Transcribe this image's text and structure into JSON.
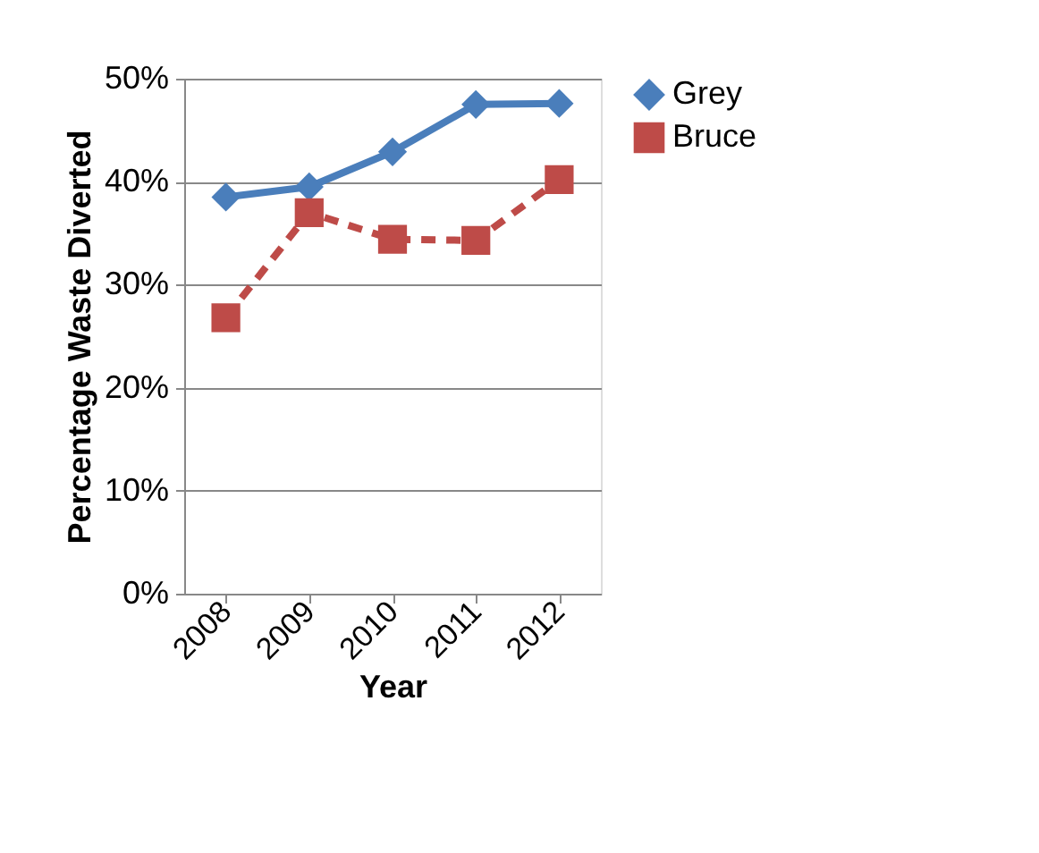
{
  "chart_data": {
    "type": "line",
    "xlabel": "Year",
    "ylabel": "Percentage Waste Diverted",
    "categories": [
      "2008",
      "2009",
      "2010",
      "2011",
      "2012"
    ],
    "series": [
      {
        "name": "Grey",
        "color": "#4a7ebb",
        "marker": "diamond",
        "line_style": "solid",
        "values": [
          38.5,
          39.5,
          42.9,
          47.5,
          47.6
        ]
      },
      {
        "name": "Bruce",
        "color": "#be4b48",
        "marker": "square",
        "line_style": "dashed",
        "values": [
          26.8,
          37.0,
          34.4,
          34.3,
          40.2
        ]
      }
    ],
    "ylim": [
      0,
      50
    ],
    "yticks": [
      {
        "value": 0,
        "label": "0%"
      },
      {
        "value": 10,
        "label": "10%"
      },
      {
        "value": 20,
        "label": "20%"
      },
      {
        "value": 30,
        "label": "30%"
      },
      {
        "value": 40,
        "label": "40%"
      },
      {
        "value": 50,
        "label": "50%"
      }
    ],
    "grid": "y",
    "legend": "right"
  }
}
